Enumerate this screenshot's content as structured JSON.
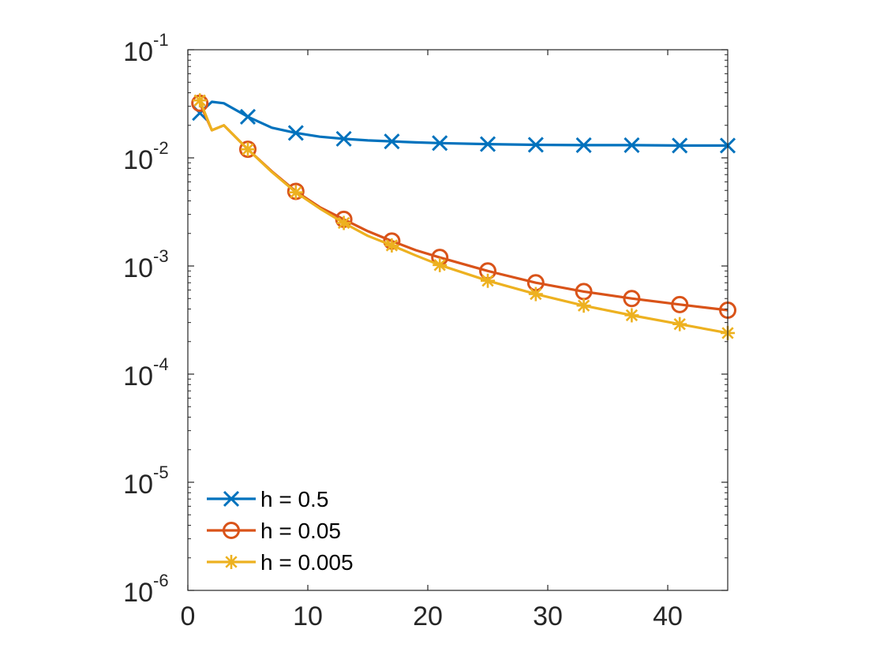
{
  "chart_data": {
    "type": "line",
    "title": "",
    "xlabel": "",
    "ylabel": "",
    "xscale": "linear",
    "yscale": "log",
    "xlim": [
      0,
      45
    ],
    "ylim": [
      1e-06,
      0.1
    ],
    "grid": false,
    "legend_position": "bottom-left",
    "x_ticks": [
      {
        "value": 0,
        "label": "0"
      },
      {
        "value": 10,
        "label": "10"
      },
      {
        "value": 20,
        "label": "20"
      },
      {
        "value": 30,
        "label": "30"
      },
      {
        "value": 40,
        "label": "40"
      }
    ],
    "y_ticks": [
      {
        "value": 1e-06,
        "base": "10",
        "exp": "-6"
      },
      {
        "value": 1e-05,
        "base": "10",
        "exp": "-5"
      },
      {
        "value": 0.0001,
        "base": "10",
        "exp": "-4"
      },
      {
        "value": 0.001,
        "base": "10",
        "exp": "-3"
      },
      {
        "value": 0.01,
        "base": "10",
        "exp": "-2"
      },
      {
        "value": 0.1,
        "base": "10",
        "exp": "-1"
      }
    ],
    "series": [
      {
        "name": "h = 0.5",
        "color": "#0072BD",
        "marker": "x",
        "line_x": [
          1,
          2,
          3,
          5,
          7,
          9,
          11,
          13,
          15,
          17,
          19,
          21,
          25,
          29,
          33,
          37,
          41,
          45
        ],
        "line_y": [
          0.026,
          0.033,
          0.032,
          0.024,
          0.019,
          0.017,
          0.0157,
          0.015,
          0.0145,
          0.0142,
          0.0139,
          0.0137,
          0.0134,
          0.0132,
          0.0131,
          0.0131,
          0.013,
          0.013
        ],
        "marker_x": [
          1,
          5,
          9,
          13,
          17,
          21,
          25,
          29,
          33,
          37,
          41,
          45
        ],
        "marker_y": [
          0.026,
          0.024,
          0.017,
          0.015,
          0.0142,
          0.0137,
          0.0134,
          0.0132,
          0.0131,
          0.0131,
          0.013,
          0.013
        ]
      },
      {
        "name": "h = 0.05",
        "color": "#D95319",
        "marker": "o",
        "line_x": [
          1,
          2,
          3,
          5,
          7,
          9,
          11,
          13,
          15,
          17,
          19,
          21,
          25,
          29,
          33,
          37,
          41,
          45
        ],
        "line_y": [
          0.032,
          0.018,
          0.02,
          0.012,
          0.0075,
          0.0049,
          0.0035,
          0.0027,
          0.0021,
          0.0017,
          0.0014,
          0.0012,
          0.0009,
          0.0007,
          0.00058,
          0.0005,
          0.00044,
          0.00039
        ],
        "marker_x": [
          1,
          5,
          9,
          13,
          17,
          21,
          25,
          29,
          33,
          37,
          41,
          45
        ],
        "marker_y": [
          0.032,
          0.012,
          0.0049,
          0.0027,
          0.0017,
          0.0012,
          0.0009,
          0.0007,
          0.00058,
          0.0005,
          0.00044,
          0.00039
        ]
      },
      {
        "name": "h = 0.005",
        "color": "#EDB120",
        "marker": "*",
        "line_x": [
          1,
          2,
          3,
          5,
          7,
          9,
          11,
          13,
          15,
          17,
          19,
          21,
          25,
          29,
          33,
          37,
          41,
          45
        ],
        "line_y": [
          0.034,
          0.018,
          0.02,
          0.012,
          0.0074,
          0.0048,
          0.0034,
          0.0025,
          0.0019,
          0.00155,
          0.00125,
          0.00102,
          0.00073,
          0.00055,
          0.00043,
          0.00035,
          0.00029,
          0.00024
        ],
        "marker_x": [
          1,
          5,
          9,
          13,
          17,
          21,
          25,
          29,
          33,
          37,
          41,
          45
        ],
        "marker_y": [
          0.034,
          0.012,
          0.0048,
          0.0025,
          0.00155,
          0.00102,
          0.00073,
          0.00055,
          0.00043,
          0.00035,
          0.00029,
          0.00024
        ]
      }
    ]
  }
}
